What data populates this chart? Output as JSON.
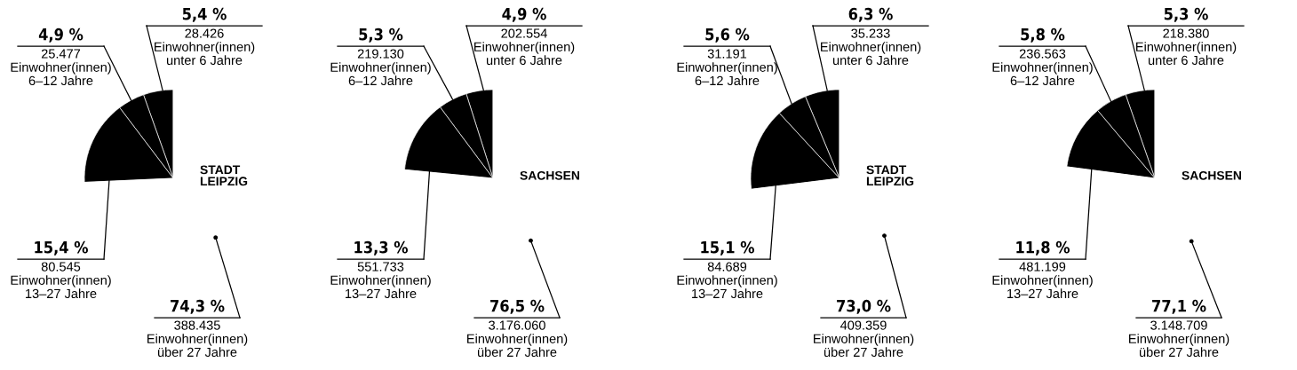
{
  "chart_data": [
    {
      "type": "pie",
      "title": "STADT\nLEIPZIG",
      "categories": [
        "Einwohner(innen)\nunter 6 Jahre",
        "Einwohner(innen)\n6–12 Jahre",
        "Einwohner(innen)\n13–27 Jahre",
        "Einwohner(innen)\nüber 27 Jahre"
      ],
      "values": [
        28426,
        25477,
        80545,
        388435
      ],
      "colors": [
        "#000000",
        "#000000",
        "#000000",
        "#ffffff"
      ],
      "value_labels": [
        "5,4 %\n28.426",
        "4,9 %\n25.477",
        "15,4 %\n80.545",
        "74,3 %\n388.435"
      ]
    },
    {
      "type": "pie",
      "title": "SACHSEN",
      "categories": [
        "Einwohner(innen)\nunter 6 Jahre",
        "Einwohner(innen)\n6–12 Jahre",
        "Einwohner(innen)\n13–27 Jahre",
        "Einwohner(innen)\nüber 27 Jahre"
      ],
      "values": [
        202554,
        219130,
        551733,
        3176060
      ],
      "colors": [
        "#000000",
        "#000000",
        "#000000",
        "#ffffff"
      ],
      "value_labels": [
        "4,9 %\n202.554",
        "5,3 %\n219.130",
        "13,3 %\n551.733",
        "76,5 %\n3.176.060"
      ]
    },
    {
      "type": "pie",
      "title": "STADT\nLEIPZIG",
      "categories": [
        "Einwohner(innen)\nunter 6 Jahre",
        "Einwohner(innen)\n6–12 Jahre",
        "Einwohner(innen)\n13–27 Jahre",
        "Einwohner(innen)\nüber 27 Jahre"
      ],
      "values": [
        35233,
        31191,
        84689,
        409359
      ],
      "colors": [
        "#000000",
        "#000000",
        "#000000",
        "#ffffff"
      ],
      "value_labels": [
        "6,3 %\n35.233",
        "5,6 %\n31.191",
        "15,1 %\n84.689",
        "73,0 %\n409.359"
      ]
    },
    {
      "type": "pie",
      "title": "SACHSEN",
      "categories": [
        "Einwohner(innen)\nunter 6 Jahre",
        "Einwohner(innen)\n6–12 Jahre",
        "Einwohner(innen)\n13–27 Jahre",
        "Einwohner(innen)\nüber 27 Jahre"
      ],
      "values": [
        218380,
        236563,
        481199,
        3148709
      ],
      "colors": [
        "#000000",
        "#000000",
        "#000000",
        "#ffffff"
      ],
      "value_labels": [
        "5,3 %\n218.380",
        "5,8 %\n236.563",
        "11,8 %\n481.199",
        "77,1 %\n3.148.709"
      ]
    }
  ]
}
